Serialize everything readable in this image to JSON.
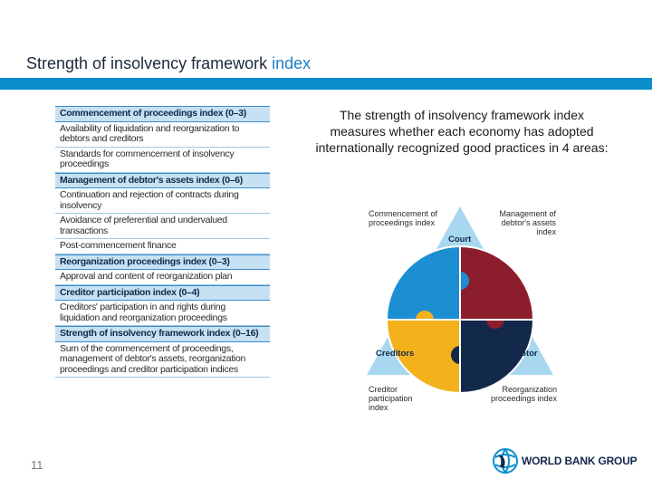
{
  "slide": {
    "title_main": "Strength of insolvency framework ",
    "title_accent": "index",
    "page_number": "11"
  },
  "table": {
    "rows": [
      {
        "text": "Commencement of proceedings index (0–3)",
        "header": true
      },
      {
        "text": "Availability of liquidation and reorganization to debtors and creditors",
        "header": false
      },
      {
        "text": "Standards for commencement of insolvency proceedings",
        "header": false
      },
      {
        "text": "Management of debtor's assets index (0–6)",
        "header": true
      },
      {
        "text": "Continuation and rejection of contracts during insolvency",
        "header": false
      },
      {
        "text": "Avoidance of preferential and undervalued transactions",
        "header": false
      },
      {
        "text": "Post-commencement finance",
        "header": false
      },
      {
        "text": "Reorganization proceedings index (0–3)",
        "header": true
      },
      {
        "text": "Approval and content of reorganization plan",
        "header": false
      },
      {
        "text": "Creditor participation index (0–4)",
        "header": true
      },
      {
        "text": "Creditors' participation in and rights during liquidation and reorganization proceedings",
        "header": false
      },
      {
        "text": "Strength of insolvency framework index (0–16)",
        "header": true
      },
      {
        "text": "Sum of the commencement of proceedings, management of debtor's assets, reorganization proceedings and creditor participation indices",
        "header": false
      }
    ]
  },
  "description": "The strength of insolvency framework index measures whether each economy has adopted internationally recognized good practices in 4 areas:",
  "diagram": {
    "label_commencement": "Commencement of proceedings index",
    "label_management": "Management of debtor's assets index",
    "label_court": "Court",
    "label_creditors": "Creditors",
    "label_debtor": "Debtor",
    "label_creditor_participation": "Creditor participation index",
    "label_reorganization": "Reorganization proceedings index",
    "colors": {
      "triangle": "#9fd3ef",
      "blue_piece": "#1b8fd1",
      "red_piece": "#8b1d2c",
      "yellow_piece": "#f3b21b",
      "navy_piece": "#13294b"
    }
  },
  "logo": {
    "text": "WORLD BANK GROUP",
    "icon": "globe-icon"
  }
}
